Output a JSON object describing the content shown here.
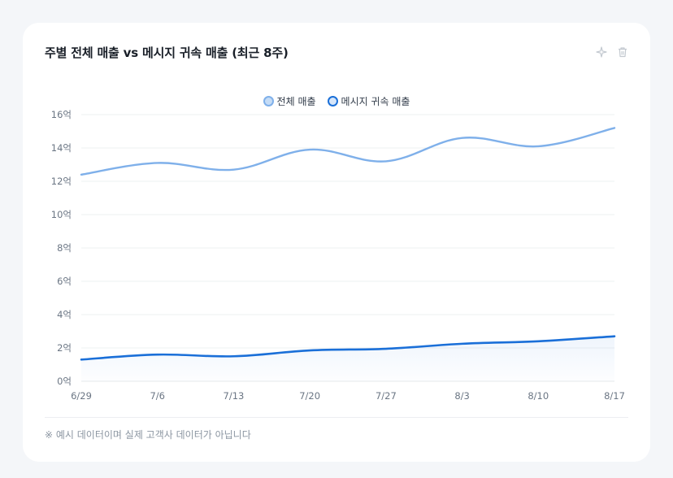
{
  "card": {
    "title": "주별 전체 매출 vs 메시지 귀속 매출 (최근 8주)",
    "actions": [
      {
        "icon": "sparkle-icon"
      },
      {
        "icon": "trash-icon"
      }
    ],
    "footnote": "※ 예시 데이터이며 실제 고객사 데이터가 아닙니다"
  },
  "chart_data": {
    "type": "line",
    "title": "주별 전체 매출 vs 메시지 귀속 매출 (최근 8주)",
    "x": [
      "6/29",
      "7/6",
      "7/13",
      "7/20",
      "7/27",
      "8/3",
      "8/10",
      "8/17"
    ],
    "y_ticks": [
      "0억",
      "2억",
      "4억",
      "6억",
      "8억",
      "10억",
      "12억",
      "14억",
      "16억"
    ],
    "ylim": [
      0,
      16
    ],
    "y_unit": "억",
    "grid": true,
    "legend_position": "top-center",
    "series": [
      {
        "name": "전체 매출",
        "color": "#7fb0ea",
        "values": [
          12.4,
          13.1,
          12.7,
          13.9,
          13.2,
          14.6,
          14.1,
          15.2
        ]
      },
      {
        "name": "메시지 귀속 매출",
        "color": "#1a6fd8",
        "values": [
          1.3,
          1.6,
          1.5,
          1.85,
          1.95,
          2.25,
          2.4,
          2.7
        ]
      }
    ]
  }
}
